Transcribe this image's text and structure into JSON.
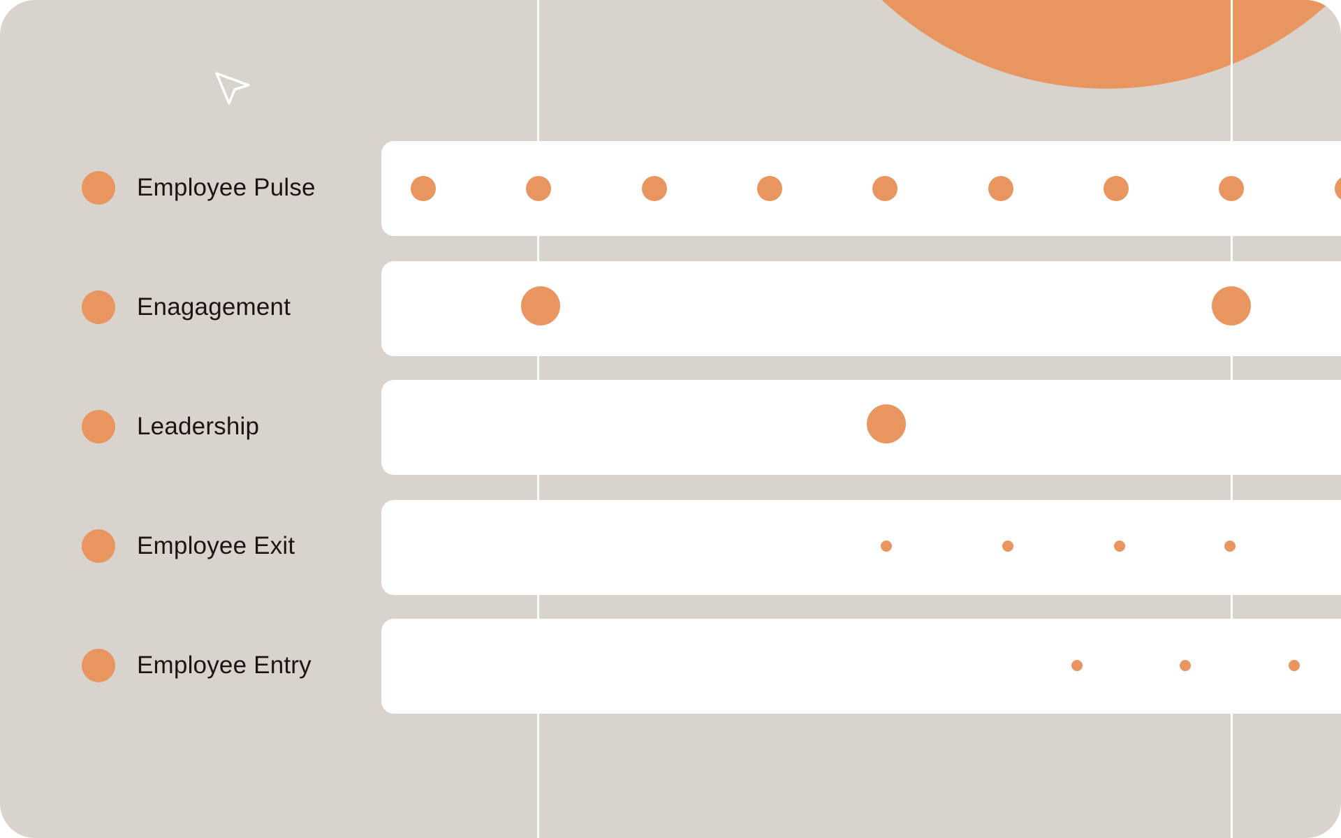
{
  "colors": {
    "accent": "#e8955f",
    "panel": "#d9d3ce",
    "track": "#ffffff",
    "text": "#1b1413"
  },
  "icons": {
    "cursor": "cursor-arrow-icon",
    "legend": "circle-dot-icon",
    "decoration": "orange-circle-shape"
  },
  "rows": [
    {
      "label": "Employee Pulse"
    },
    {
      "label": "Enagagement"
    },
    {
      "label": "Leadership"
    },
    {
      "label": "Employee Exit"
    },
    {
      "label": "Employee Entry"
    }
  ]
}
